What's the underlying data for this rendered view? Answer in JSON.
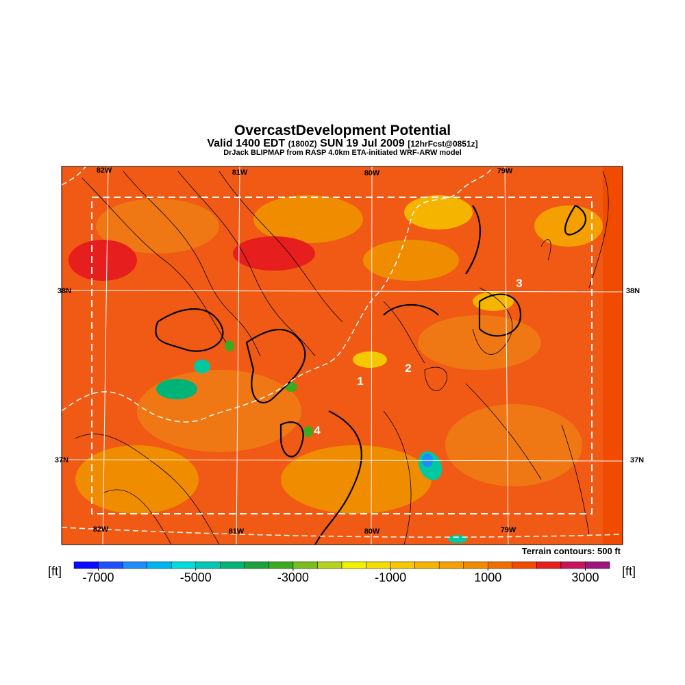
{
  "title": "OvercastDevelopment Potential",
  "subtitle": {
    "valid": "Valid 1400 EDT",
    "utc": "(1800Z)",
    "date": "SUN 19 Jul 2009",
    "forecast": "[12hrFcst@0851z]"
  },
  "credit": "DrJack BLIPMAP from RASP 4.0km ETA-initiated WRF-ARW model",
  "map": {
    "lon_labels": [
      "82W",
      "81W",
      "80W",
      "79W"
    ],
    "lat_labels": [
      "38N",
      "37N"
    ],
    "annotations": [
      "1",
      "2",
      "3",
      "4"
    ],
    "note": "Terrain contours: 500 ft"
  },
  "colorbar": {
    "unit": "[ft]",
    "range": [
      -7500,
      3500
    ],
    "ticks": [
      -7000,
      -5000,
      -3000,
      -1000,
      1000,
      3000
    ],
    "colors": [
      "#0a0aff",
      "#1e50ff",
      "#1e8cff",
      "#00b4f0",
      "#00dcdc",
      "#00c8b4",
      "#00b478",
      "#1ea03c",
      "#3caa1e",
      "#78be1e",
      "#b4d21e",
      "#f0f000",
      "#f5dc00",
      "#f5c800",
      "#f5b400",
      "#f5a000",
      "#f08c00",
      "#f06e00",
      "#f04b00",
      "#e61e1e",
      "#c8145a",
      "#a0147d"
    ]
  }
}
